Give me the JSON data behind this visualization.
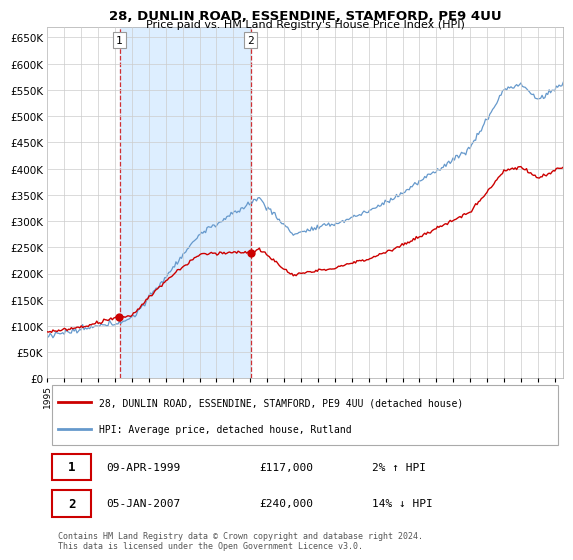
{
  "title": "28, DUNLIN ROAD, ESSENDINE, STAMFORD, PE9 4UU",
  "subtitle": "Price paid vs. HM Land Registry's House Price Index (HPI)",
  "ylim": [
    0,
    670000
  ],
  "yticks": [
    0,
    50000,
    100000,
    150000,
    200000,
    250000,
    300000,
    350000,
    400000,
    450000,
    500000,
    550000,
    600000,
    650000
  ],
  "property_color": "#cc0000",
  "hpi_color": "#6699cc",
  "hpi_shade_color": "#ddeeff",
  "background_color": "#ffffff",
  "grid_color": "#cccccc",
  "transaction1": {
    "num": "1",
    "date": "09-APR-1999",
    "price": "£117,000",
    "hpi": "2% ↑ HPI",
    "year": 1999.27
  },
  "transaction2": {
    "num": "2",
    "date": "05-JAN-2007",
    "price": "£240,000",
    "hpi": "14% ↓ HPI",
    "year": 2007.02
  },
  "legend_property": "28, DUNLIN ROAD, ESSENDINE, STAMFORD, PE9 4UU (detached house)",
  "legend_hpi": "HPI: Average price, detached house, Rutland",
  "footer": "Contains HM Land Registry data © Crown copyright and database right 2024.\nThis data is licensed under the Open Government Licence v3.0.",
  "xlim_start": 1995.0,
  "xlim_end": 2025.5
}
